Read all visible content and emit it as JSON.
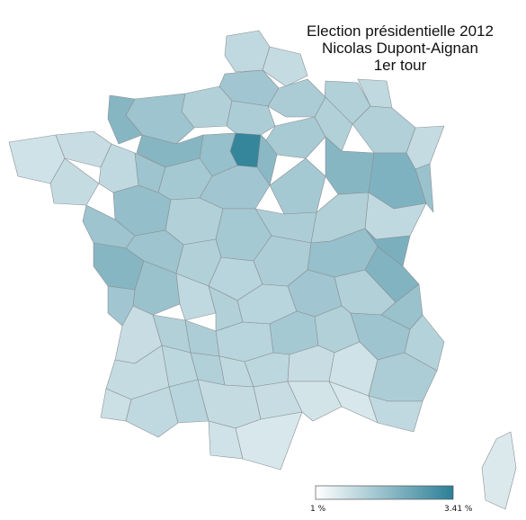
{
  "title": {
    "line1": "Election présidentielle 2012",
    "line2": "Nicolas Dupont-Aignan",
    "line3": "1er tour"
  },
  "legend": {
    "min_label": "1 %",
    "max_label": "3.41 %",
    "min_value": 1.0,
    "max_value": 3.41,
    "color_low": "#ffffff",
    "color_high": "#2b7f96"
  },
  "colors": {
    "border": "#8a8f93",
    "text": "#111111"
  }
}
